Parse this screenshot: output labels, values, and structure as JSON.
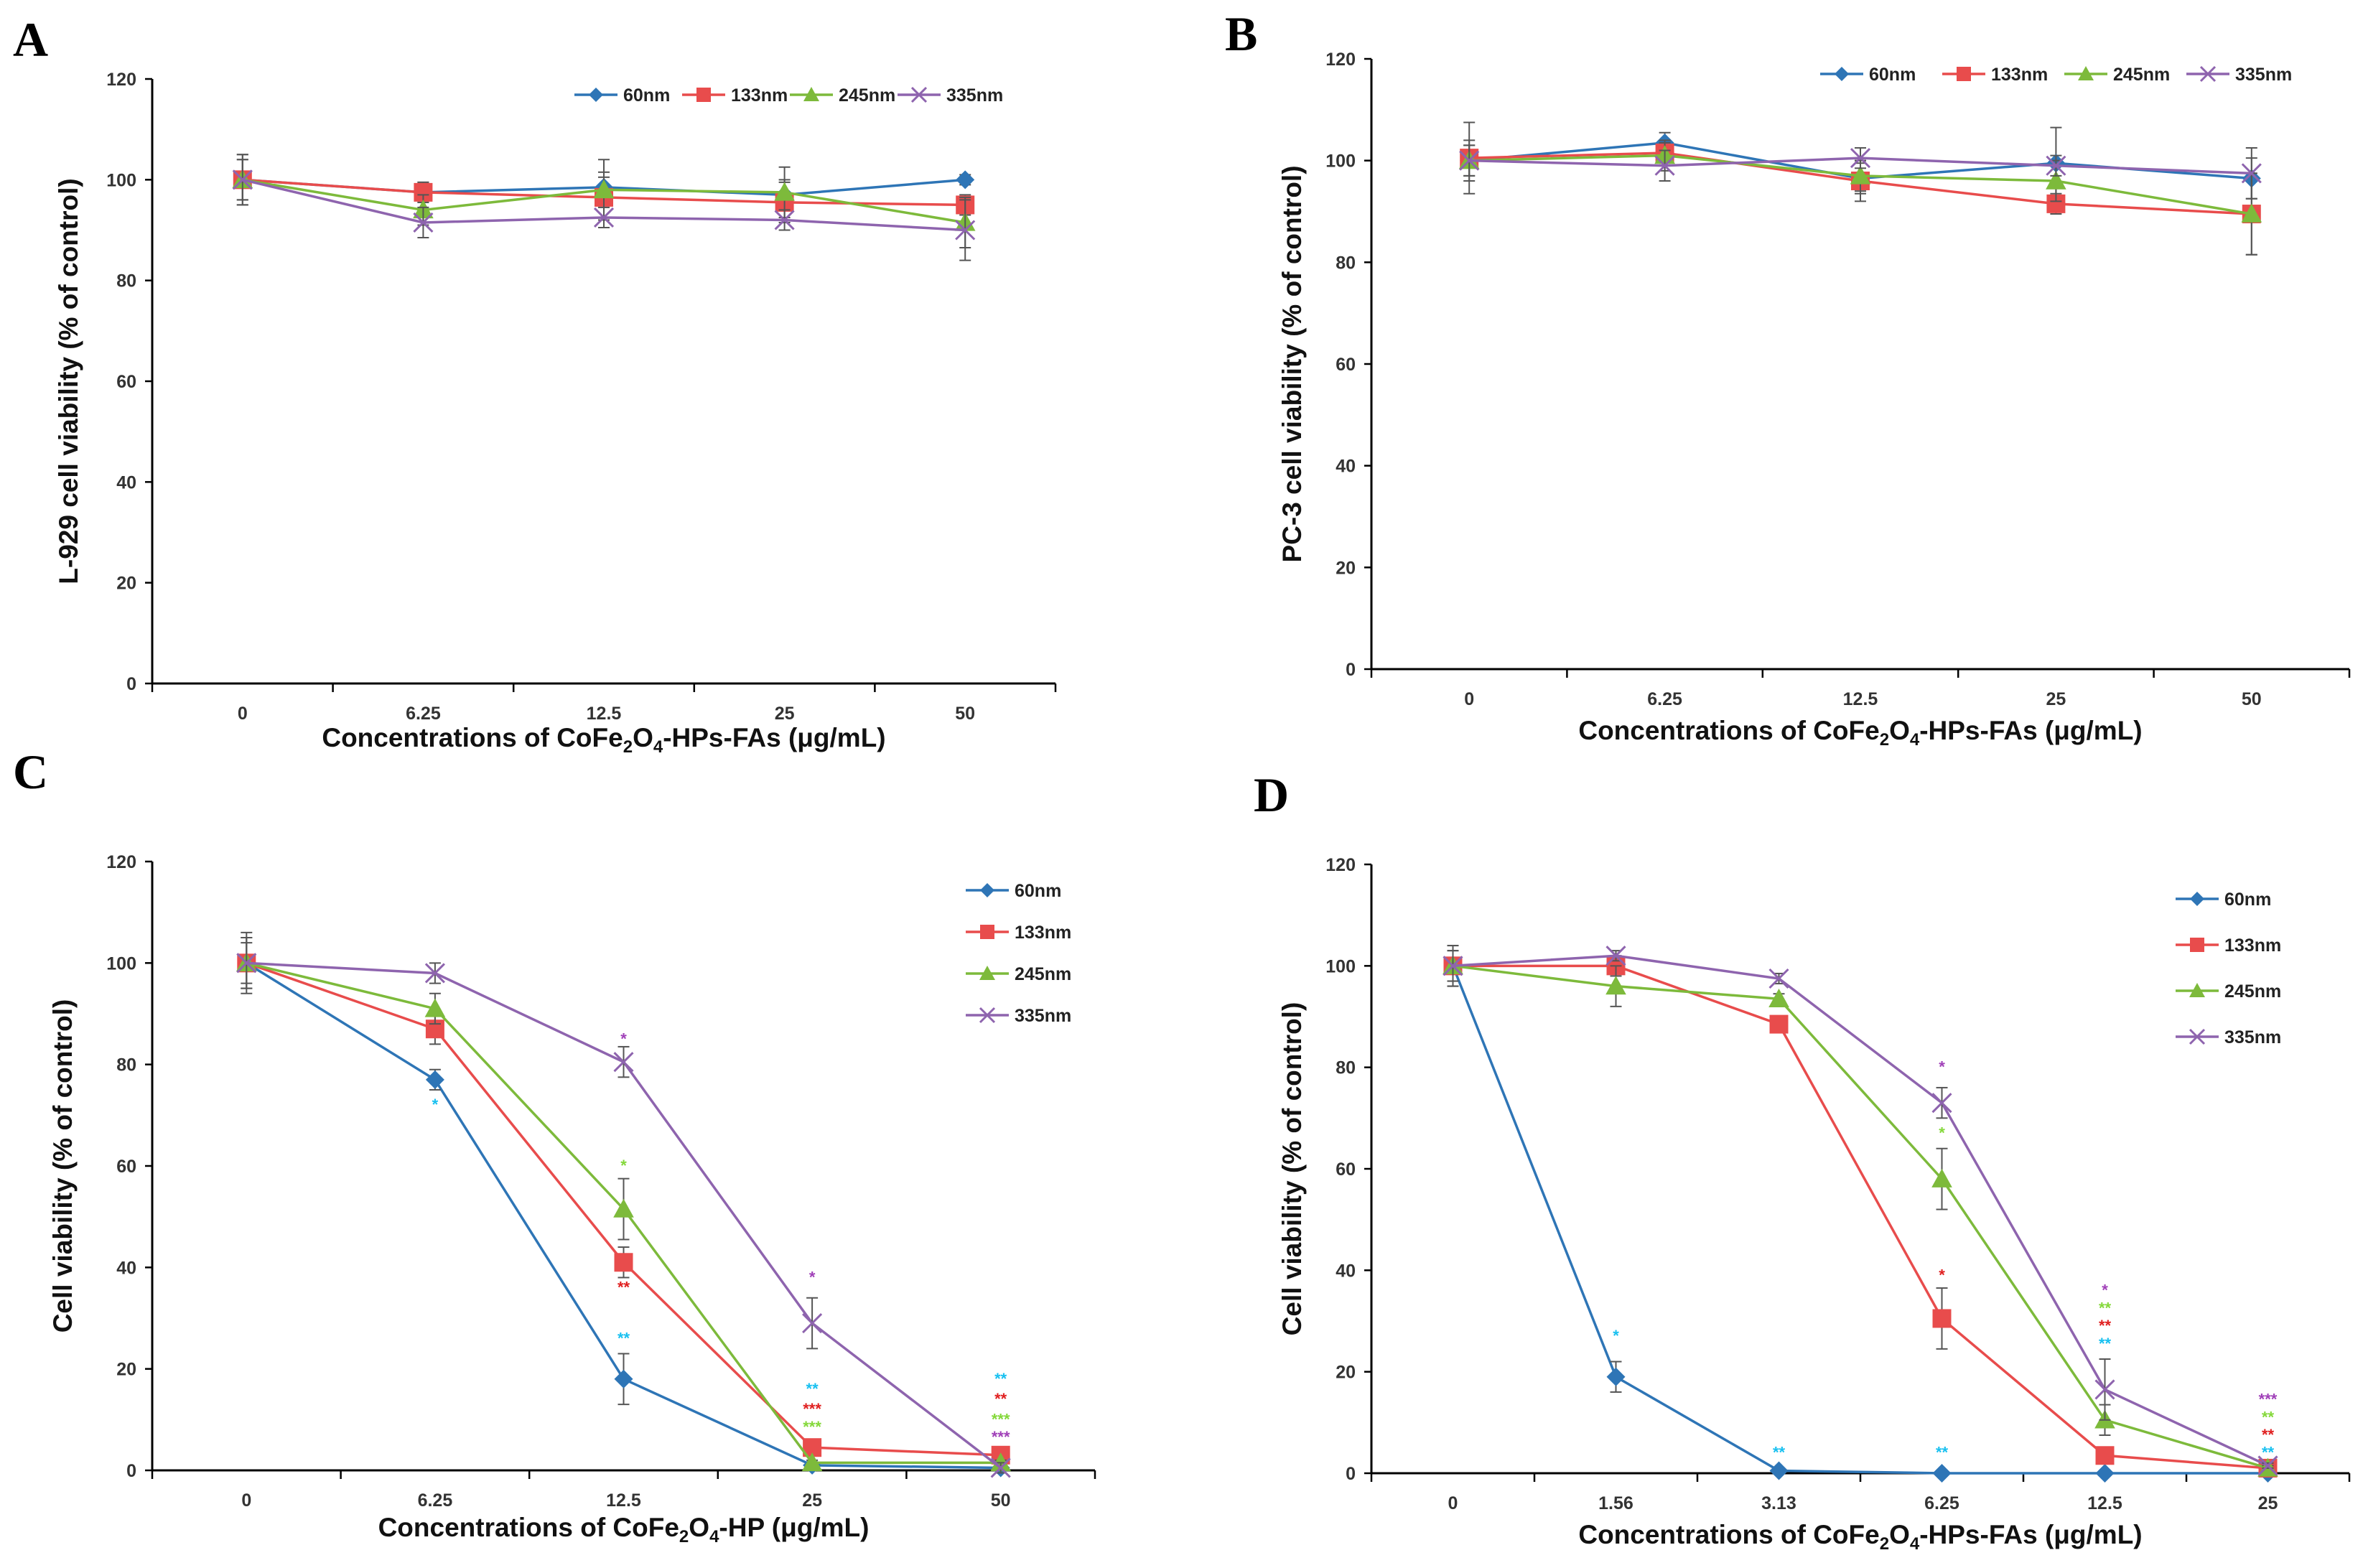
{
  "chart_data": [
    {
      "panel": "A",
      "type": "line",
      "categories": [
        "0",
        "6.25",
        "12.5",
        "25",
        "50"
      ],
      "ylabel": "L-929 cell viability (% of control)",
      "xlabel": "Concentrations of CoFe2O4-HPs-FAs (μg/mL)",
      "xlabel_parts": [
        "Concentrations of CoFe",
        "2",
        "O",
        "4",
        "-HPs-FAs (μg/mL)"
      ],
      "ylim": [
        0,
        120
      ],
      "yticks": [
        "0",
        "20",
        "40",
        "60",
        "80",
        "100",
        "120"
      ],
      "legend_position": "top-right",
      "series": [
        {
          "name": "60nm",
          "values": [
            100,
            97.5,
            98.5,
            97,
            100
          ],
          "errors": [
            5,
            2,
            3,
            3,
            1
          ]
        },
        {
          "name": "133nm",
          "values": [
            100,
            97.5,
            96.5,
            95.5,
            95
          ],
          "errors": [
            4,
            2,
            4,
            4,
            2
          ]
        },
        {
          "name": "245nm",
          "values": [
            100,
            94,
            98,
            97.5,
            91.5
          ],
          "errors": [
            5,
            3,
            6,
            5,
            5
          ]
        },
        {
          "name": "335nm",
          "values": [
            100,
            91.5,
            92.5,
            92,
            90
          ],
          "errors": [
            4,
            3,
            2,
            2,
            6
          ]
        }
      ],
      "annotations": []
    },
    {
      "panel": "B",
      "type": "line",
      "categories": [
        "0",
        "6.25",
        "12.5",
        "25",
        "50"
      ],
      "ylabel": "PC-3 cell viability (% of control)",
      "xlabel": "Concentrations of CoFe2O4-HPs-FAs (μg/mL)",
      "xlabel_parts": [
        "Concentrations of CoFe",
        "2",
        "O",
        "4",
        "-HPs-FAs (μg/mL)"
      ],
      "ylim": [
        0,
        120
      ],
      "yticks": [
        "0",
        "20",
        "40",
        "60",
        "80",
        "100",
        "120"
      ],
      "legend_position": "top-right",
      "series": [
        {
          "name": "60nm",
          "values": [
            100,
            103.5,
            96.5,
            99.5,
            96.5
          ],
          "errors": [
            3,
            2,
            3,
            7,
            4
          ]
        },
        {
          "name": "133nm",
          "values": [
            100.5,
            101.5,
            96,
            91.5,
            89.5
          ],
          "errors": [
            7,
            2,
            4,
            2,
            8
          ]
        },
        {
          "name": "245nm",
          "values": [
            100,
            101,
            97,
            96,
            89.5
          ],
          "errors": [
            4,
            3,
            3,
            4,
            8
          ]
        },
        {
          "name": "335nm",
          "values": [
            100,
            99,
            100.5,
            99,
            97.5
          ],
          "errors": [
            3,
            3,
            2,
            2,
            5
          ]
        }
      ],
      "annotations": []
    },
    {
      "panel": "C",
      "type": "line",
      "categories": [
        "0",
        "6.25",
        "12.5",
        "25",
        "50"
      ],
      "ylabel": "Cell viability (% of control)",
      "xlabel": "Concentrations of CoFe2O4-HP (μg/mL)",
      "xlabel_parts": [
        "Concentrations of CoFe",
        "2",
        "O",
        "4",
        "-HP (μg/mL)"
      ],
      "ylim": [
        0,
        120
      ],
      "yticks": [
        "0",
        "20",
        "40",
        "60",
        "80",
        "100",
        "120"
      ],
      "legend_position": "right",
      "series": [
        {
          "name": "60nm",
          "values": [
            100,
            77,
            18,
            1,
            0.5
          ],
          "errors": [
            5,
            2,
            5,
            0.5,
            0.5
          ]
        },
        {
          "name": "133nm",
          "values": [
            100,
            87,
            41,
            4.5,
            3
          ],
          "errors": [
            4,
            3,
            3,
            1,
            1
          ]
        },
        {
          "name": "245nm",
          "values": [
            100,
            91,
            51.5,
            1.5,
            1.5
          ],
          "errors": [
            5,
            3,
            6,
            0.5,
            0.5
          ]
        },
        {
          "name": "335nm",
          "values": [
            100,
            98,
            80.5,
            29,
            0.5
          ],
          "errors": [
            6,
            2,
            3,
            5,
            1
          ]
        }
      ],
      "annotations": [
        {
          "text": "*",
          "category": 1,
          "y": 72,
          "series": "60nm"
        },
        {
          "text": "*",
          "category": 2,
          "y": 85,
          "series": "335nm"
        },
        {
          "text": "*",
          "category": 2,
          "y": 60,
          "series": "245nm"
        },
        {
          "text": "**",
          "category": 2,
          "y": 36,
          "series": "133nm"
        },
        {
          "text": "**",
          "category": 2,
          "y": 26,
          "series": "60nm"
        },
        {
          "text": "*",
          "category": 3,
          "y": 38,
          "series": "335nm"
        },
        {
          "text": "**",
          "category": 3,
          "y": 16,
          "series": "60nm"
        },
        {
          "text": "***",
          "category": 3,
          "y": 12,
          "series": "133nm"
        },
        {
          "text": "***",
          "category": 3,
          "y": 8.5,
          "series": "245nm"
        },
        {
          "text": "**",
          "category": 4,
          "y": 18,
          "series": "60nm"
        },
        {
          "text": "**",
          "category": 4,
          "y": 14,
          "series": "133nm"
        },
        {
          "text": "***",
          "category": 4,
          "y": 10,
          "series": "245nm"
        },
        {
          "text": "***",
          "category": 4,
          "y": 6.5,
          "series": "335nm"
        }
      ]
    },
    {
      "panel": "D",
      "type": "line",
      "categories": [
        "0",
        "1.56",
        "3.13",
        "6.25",
        "12.5",
        "25"
      ],
      "ylabel": "Cell viability (% of control)",
      "xlabel": "Concentrations of CoFe2O4-HPs-FAs (μg/mL)",
      "xlabel_parts": [
        "Concentrations of CoFe",
        "2",
        "O",
        "4",
        "-HPs-FAs (μg/mL)"
      ],
      "ylim": [
        0,
        120
      ],
      "yticks": [
        "0",
        "20",
        "40",
        "60",
        "80",
        "100",
        "120"
      ],
      "legend_position": "right",
      "series": [
        {
          "name": "60nm",
          "values": [
            100,
            19,
            0.5,
            0,
            0,
            0
          ],
          "errors": [
            4,
            3,
            0.5,
            0.5,
            0.5,
            0.5
          ]
        },
        {
          "name": "133nm",
          "values": [
            100,
            100,
            88.5,
            30.5,
            3.5,
            1
          ],
          "errors": [
            3,
            2,
            1,
            6,
            1,
            0.5
          ]
        },
        {
          "name": "245nm",
          "values": [
            100,
            96,
            93.5,
            58,
            10.5,
            1
          ],
          "errors": [
            3,
            4,
            1,
            6,
            3,
            0.5
          ]
        },
        {
          "name": "335nm",
          "values": [
            100,
            102,
            97.5,
            73,
            16.5,
            1.5
          ],
          "errors": [
            4,
            1,
            1,
            3,
            6,
            0.5
          ]
        }
      ],
      "annotations": [
        {
          "text": "*",
          "category": 1,
          "y": 27,
          "series": "60nm"
        },
        {
          "text": "**",
          "category": 2,
          "y": 4,
          "series": "60nm"
        },
        {
          "text": "*",
          "category": 3,
          "y": 80,
          "series": "335nm"
        },
        {
          "text": "*",
          "category": 3,
          "y": 67,
          "series": "245nm"
        },
        {
          "text": "*",
          "category": 3,
          "y": 39,
          "series": "133nm"
        },
        {
          "text": "**",
          "category": 3,
          "y": 4,
          "series": "60nm"
        },
        {
          "text": "*",
          "category": 4,
          "y": 36,
          "series": "335nm"
        },
        {
          "text": "**",
          "category": 4,
          "y": 32.5,
          "series": "245nm"
        },
        {
          "text": "**",
          "category": 4,
          "y": 29,
          "series": "133nm"
        },
        {
          "text": "**",
          "category": 4,
          "y": 25.5,
          "series": "60nm"
        },
        {
          "text": "***",
          "category": 5,
          "y": 14.5,
          "series": "335nm"
        },
        {
          "text": "**",
          "category": 5,
          "y": 11,
          "series": "245nm"
        },
        {
          "text": "**",
          "category": 5,
          "y": 7.5,
          "series": "133nm"
        },
        {
          "text": "**",
          "category": 5,
          "y": 4,
          "series": "60nm"
        }
      ]
    }
  ],
  "style": {
    "series_colors": {
      "60nm": "#2E75B6",
      "133nm": "#E84C4C",
      "245nm": "#7DBA3B",
      "335nm": "#8E64AE"
    },
    "annotation_colors": {
      "60nm": "#18C0F0",
      "133nm": "#E02020",
      "245nm": "#84D83A",
      "335nm": "#A040B8"
    },
    "series_markers": {
      "60nm": "diamond",
      "133nm": "square",
      "245nm": "triangle",
      "335nm": "cross"
    }
  }
}
